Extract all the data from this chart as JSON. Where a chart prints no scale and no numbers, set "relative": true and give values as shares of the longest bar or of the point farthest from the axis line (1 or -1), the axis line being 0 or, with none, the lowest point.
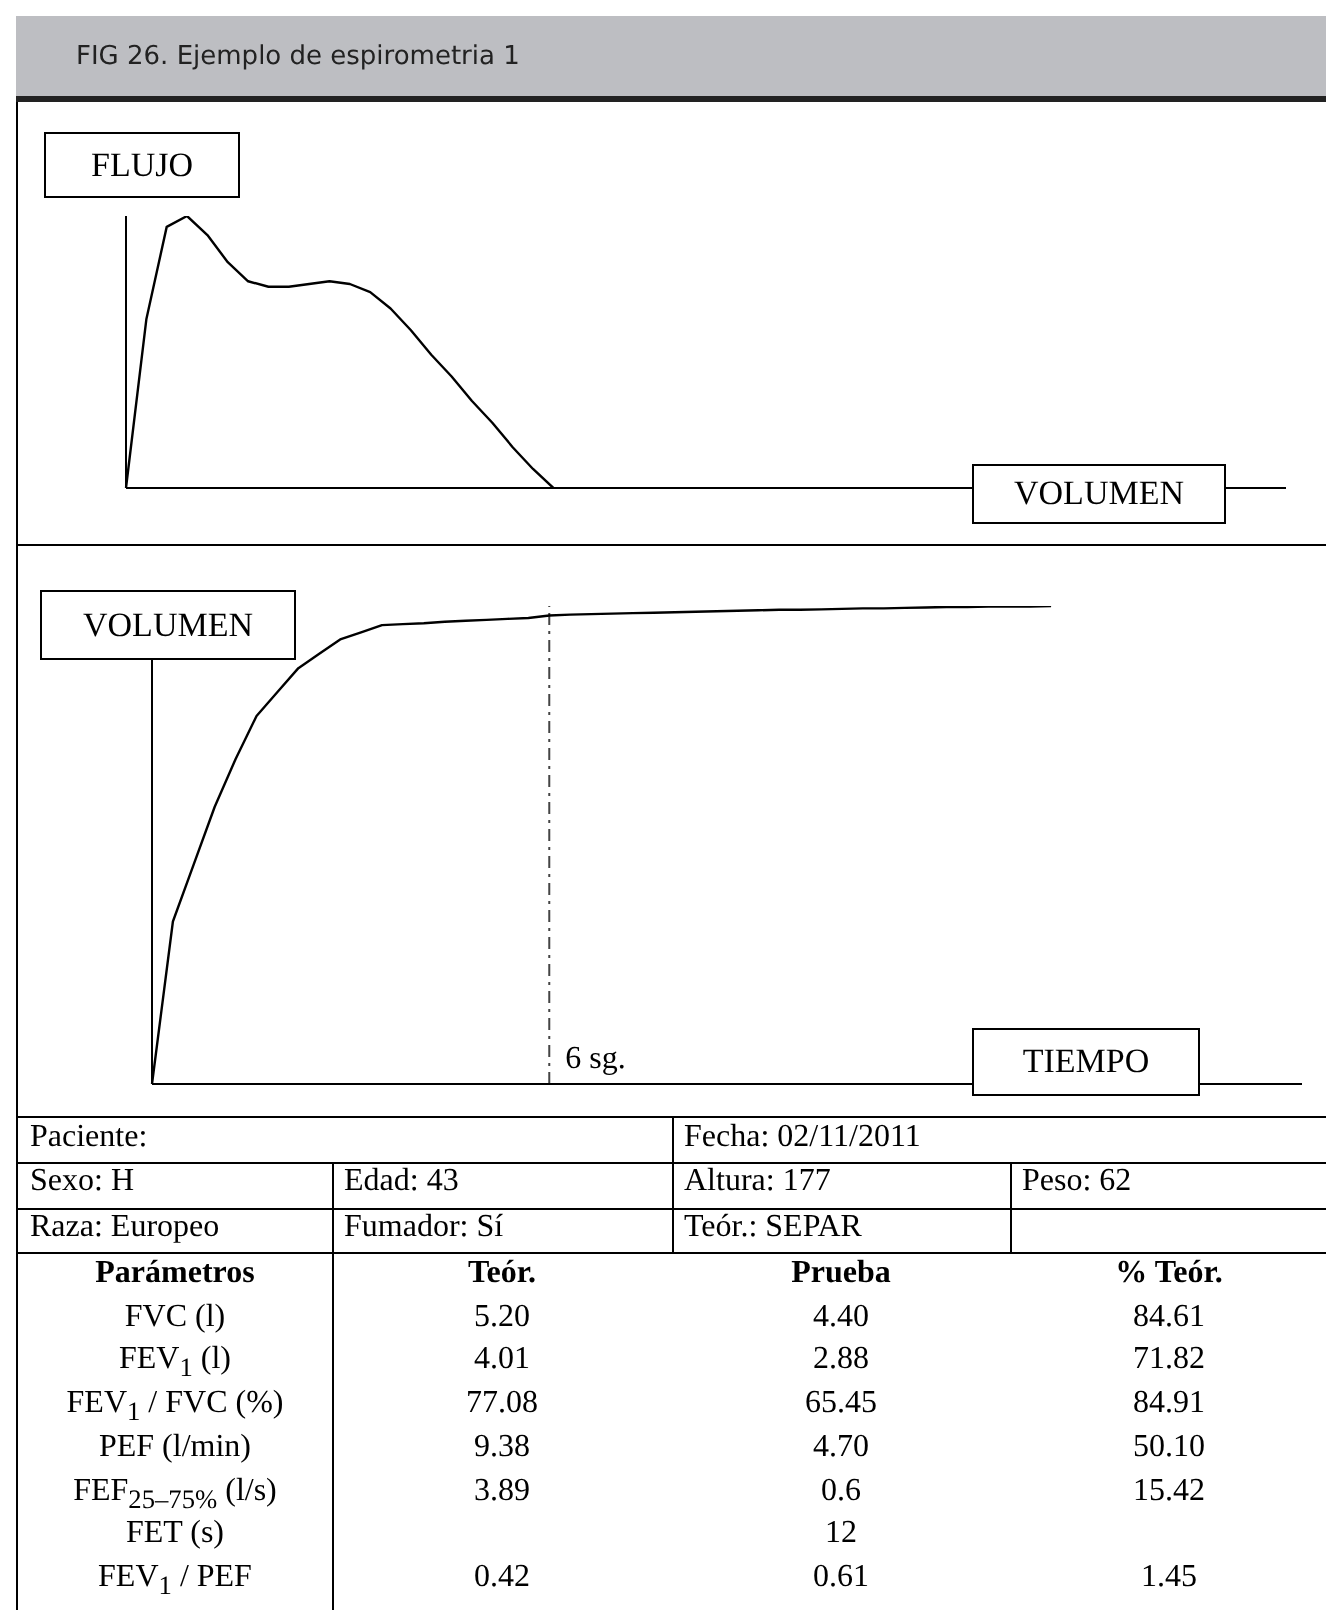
{
  "chart_data": [
    {
      "type": "line",
      "title": "FIG 26. Ejemplo de espirometria 1",
      "ylabel": "FLUJO",
      "xlabel": "VOLUMEN",
      "relative": true,
      "marker": "none",
      "line_style": "solid",
      "categories": [
        null,
        null,
        null,
        null,
        null,
        null,
        null,
        null,
        null,
        null,
        null,
        null,
        null,
        null,
        null,
        null,
        null,
        null,
        null,
        null,
        null,
        null,
        null,
        null,
        null,
        null,
        null,
        null,
        null,
        null,
        null,
        null,
        null,
        null,
        null,
        null,
        null,
        null,
        null,
        null,
        null,
        null,
        null,
        null,
        null,
        null,
        null,
        null,
        null,
        null,
        null,
        null,
        null,
        null,
        null,
        null,
        null,
        null
      ],
      "series": [
        {
          "color": "#000000",
          "values": [
            0,
            0.62,
            0.96,
            1,
            0.93,
            0.83,
            0.76,
            0.74,
            0.74,
            0.75,
            0.76,
            0.75,
            0.72,
            0.66,
            0.58,
            0.49,
            0.41,
            0.32,
            0.24,
            0.15,
            0.07,
            0,
            null,
            null,
            null,
            null,
            null,
            null,
            null,
            null,
            null,
            null,
            null,
            null,
            null,
            null,
            null,
            null,
            null,
            null,
            null,
            null,
            null,
            null,
            null,
            null,
            null,
            null,
            null,
            null,
            null,
            null,
            null,
            null,
            null,
            null,
            null,
            null
          ]
        }
      ]
    },
    {
      "type": "line",
      "ylabel": "VOLUMEN",
      "xlabel": "TIEMPO",
      "relative": true,
      "marker": "none",
      "line_style": "solid",
      "categories": [
        null,
        null,
        null,
        null,
        null,
        null,
        null,
        null,
        null,
        null,
        null,
        null,
        null,
        null,
        null,
        null,
        null,
        null,
        null,
        null,
        null,
        null,
        null,
        null,
        null,
        null,
        null,
        null,
        null,
        null,
        null,
        null,
        null,
        null,
        null,
        null,
        null,
        null,
        null,
        null,
        null,
        null,
        null,
        null,
        null,
        null,
        null,
        null,
        null,
        null,
        null,
        null,
        null,
        null,
        null,
        null
      ],
      "annotations": [
        "6 sg."
      ],
      "series": [
        {
          "color": "#000000",
          "values": [
            0,
            0.34,
            0.46,
            0.58,
            0.68,
            0.77,
            0.82,
            0.87,
            0.9,
            0.93,
            0.945,
            0.96,
            0.962,
            0.964,
            0.967,
            0.969,
            0.971,
            0.973,
            0.975,
            0.98,
            0.982,
            0.983,
            0.984,
            0.985,
            0.986,
            0.987,
            0.988,
            0.989,
            0.99,
            0.991,
            0.992,
            0.992,
            0.993,
            0.994,
            0.995,
            0.995,
            0.996,
            0.997,
            0.998,
            0.998,
            0.999,
            0.999,
            0.999,
            1,
            null,
            null,
            null,
            null,
            null,
            null,
            null,
            null,
            null,
            null,
            null,
            null
          ]
        }
      ]
    },
    {
      "type": "other",
      "annotations": [
        "Paciente:",
        "Fecha: 02/11/2011",
        "Sexo: H",
        "Edad: 43",
        "Altura: 177",
        "Peso: 62",
        "Raza: Europeo",
        "Fumador: Sí",
        "Teór.: SEPAR",
        "Parámetros",
        "Teór.",
        "Prueba",
        "% Teór.",
        "FVC (l)",
        "5.20",
        "4.40",
        "84.61",
        "FEV$_{1}$ (l)",
        "4.01",
        "2.88",
        "71.82",
        "FEV$_{1}$ / FVC (%)",
        "77.08",
        "65.45",
        "84.91",
        "PEF (l/min)",
        "9.38",
        "4.70",
        "50.10",
        "FEF$_{25–75%}$ (l/s)",
        "3.89",
        "0.6",
        "15.42",
        "FET (s)",
        "12",
        "FEV$_{1}$ / PEF",
        "0.42",
        "0.61",
        "1.45"
      ]
    }
  ]
}
